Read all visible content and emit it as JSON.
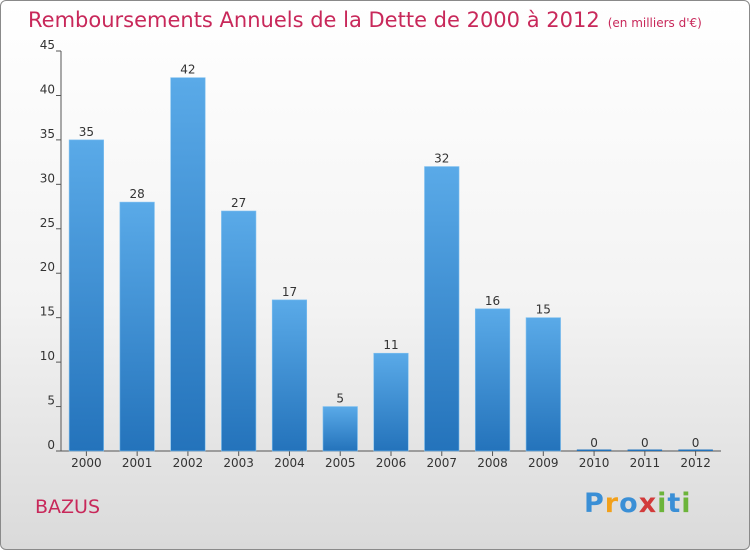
{
  "chart_data": {
    "type": "bar",
    "title": "Remboursements Annuels de la Dette de 2000 à 2012",
    "subtitle": "(en milliers d'€)",
    "categories": [
      "2000",
      "2001",
      "2002",
      "2003",
      "2004",
      "2005",
      "2006",
      "2007",
      "2008",
      "2009",
      "2010",
      "2011",
      "2012"
    ],
    "values": [
      35,
      28,
      42,
      27,
      17,
      5,
      11,
      32,
      16,
      15,
      0,
      0,
      0
    ],
    "value_labels": [
      "35",
      "28",
      "42",
      "27",
      "17",
      "5",
      "11",
      "32",
      "16",
      "15",
      "0",
      "0",
      "0"
    ],
    "ylim": [
      0,
      45
    ],
    "yticks": [
      0,
      5,
      10,
      15,
      20,
      25,
      30,
      35,
      40,
      45
    ],
    "xlabel": "",
    "ylabel": "",
    "grid": false,
    "bar_color_top": "#5aaae8",
    "bar_color_bottom": "#2473bb"
  },
  "footer": {
    "commune": "BAZUS",
    "logo_letters": [
      "P",
      "r",
      "o",
      "x",
      "i",
      "t",
      "i"
    ]
  },
  "colors": {
    "title": "#c8285a",
    "axis": "#555555"
  }
}
